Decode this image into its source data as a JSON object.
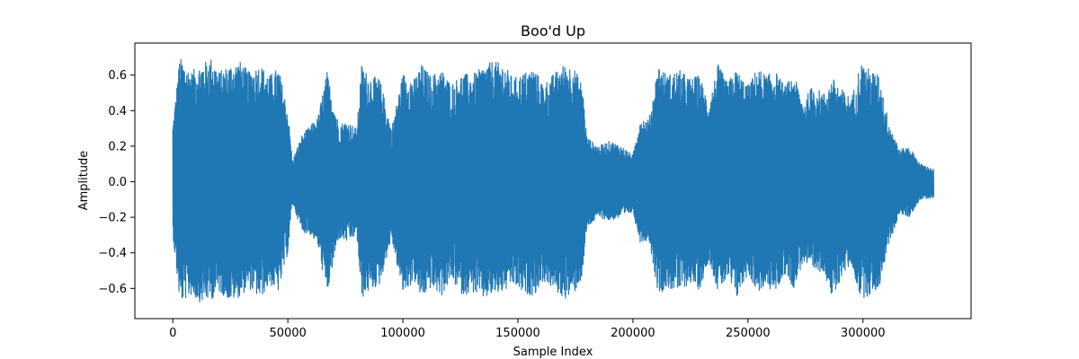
{
  "chart_data": {
    "type": "line",
    "title": "Boo'd Up",
    "xlabel": "Sample Index",
    "ylabel": "Amplitude",
    "xlim": [
      -16500,
      347000
    ],
    "ylim": [
      -0.77,
      0.78
    ],
    "x_ticks": [
      0,
      50000,
      100000,
      150000,
      200000,
      250000,
      300000
    ],
    "x_tick_labels": [
      "0",
      "50000",
      "100000",
      "150000",
      "200000",
      "250000",
      "300000"
    ],
    "y_ticks": [
      -0.6,
      -0.4,
      -0.2,
      0.0,
      0.2,
      0.4,
      0.6
    ],
    "y_tick_labels": [
      "−0.6",
      "−0.4",
      "−0.2",
      "0.0",
      "0.2",
      "0.4",
      "0.6"
    ],
    "grid": false,
    "series": [
      {
        "color": "#1f77b4",
        "sample_count": 330750,
        "envelope_upper": {
          "x": [
            0,
            3000,
            8000,
            12000,
            17000,
            20000,
            25000,
            29000,
            33000,
            38000,
            42000,
            46000,
            50000,
            52000,
            56000,
            60000,
            63000,
            67000,
            72000,
            76000,
            80000,
            82000,
            85000,
            90000,
            95000,
            100000,
            105000,
            108000,
            112000,
            117000,
            121000,
            126000,
            130000,
            135000,
            139000,
            144000,
            148000,
            152000,
            157000,
            161000,
            165000,
            170000,
            174000,
            178000,
            180000,
            185000,
            190000,
            195000,
            200000,
            203000,
            207000,
            211000,
            215000,
            220000,
            225000,
            229000,
            233000,
            237000,
            241000,
            245000,
            250000,
            254000,
            258000,
            262000,
            266000,
            270000,
            274000,
            278000,
            283000,
            287000,
            291000,
            295000,
            299000,
            303000,
            307000,
            311000,
            316000,
            320000,
            325000,
            330750
          ],
          "y": [
            0.32,
            0.7,
            0.62,
            0.66,
            0.7,
            0.62,
            0.66,
            0.68,
            0.62,
            0.66,
            0.6,
            0.64,
            0.4,
            0.12,
            0.26,
            0.32,
            0.36,
            0.62,
            0.33,
            0.34,
            0.3,
            0.66,
            0.6,
            0.58,
            0.3,
            0.61,
            0.58,
            0.66,
            0.6,
            0.63,
            0.55,
            0.61,
            0.6,
            0.65,
            0.68,
            0.66,
            0.58,
            0.61,
            0.64,
            0.55,
            0.6,
            0.66,
            0.65,
            0.55,
            0.25,
            0.2,
            0.23,
            0.2,
            0.15,
            0.36,
            0.35,
            0.66,
            0.6,
            0.63,
            0.58,
            0.6,
            0.44,
            0.66,
            0.56,
            0.63,
            0.54,
            0.64,
            0.6,
            0.62,
            0.54,
            0.6,
            0.45,
            0.54,
            0.5,
            0.58,
            0.52,
            0.47,
            0.67,
            0.63,
            0.6,
            0.35,
            0.18,
            0.2,
            0.1,
            0.07
          ]
        },
        "envelope_lower": {
          "x": [
            0,
            3000,
            8000,
            12000,
            17000,
            20000,
            25000,
            29000,
            33000,
            38000,
            42000,
            46000,
            50000,
            52000,
            56000,
            60000,
            63000,
            67000,
            72000,
            76000,
            80000,
            82000,
            85000,
            90000,
            95000,
            100000,
            105000,
            108000,
            112000,
            117000,
            121000,
            126000,
            130000,
            135000,
            139000,
            144000,
            148000,
            152000,
            157000,
            161000,
            165000,
            170000,
            174000,
            178000,
            180000,
            185000,
            190000,
            195000,
            200000,
            203000,
            207000,
            211000,
            215000,
            220000,
            225000,
            229000,
            233000,
            237000,
            241000,
            245000,
            250000,
            254000,
            258000,
            262000,
            266000,
            270000,
            274000,
            278000,
            283000,
            287000,
            291000,
            295000,
            299000,
            303000,
            307000,
            311000,
            316000,
            320000,
            325000,
            330750
          ],
          "y": [
            -0.3,
            -0.68,
            -0.64,
            -0.68,
            -0.66,
            -0.62,
            -0.67,
            -0.65,
            -0.6,
            -0.66,
            -0.58,
            -0.62,
            -0.4,
            -0.12,
            -0.28,
            -0.3,
            -0.36,
            -0.64,
            -0.32,
            -0.34,
            -0.3,
            -0.66,
            -0.62,
            -0.58,
            -0.32,
            -0.63,
            -0.56,
            -0.66,
            -0.6,
            -0.64,
            -0.55,
            -0.64,
            -0.62,
            -0.66,
            -0.64,
            -0.62,
            -0.58,
            -0.63,
            -0.64,
            -0.56,
            -0.6,
            -0.66,
            -0.64,
            -0.54,
            -0.26,
            -0.2,
            -0.22,
            -0.2,
            -0.17,
            -0.34,
            -0.33,
            -0.63,
            -0.6,
            -0.62,
            -0.57,
            -0.61,
            -0.44,
            -0.62,
            -0.55,
            -0.66,
            -0.52,
            -0.62,
            -0.6,
            -0.62,
            -0.52,
            -0.6,
            -0.45,
            -0.52,
            -0.5,
            -0.68,
            -0.52,
            -0.47,
            -0.66,
            -0.64,
            -0.6,
            -0.36,
            -0.18,
            -0.2,
            -0.1,
            -0.09
          ]
        }
      }
    ]
  }
}
